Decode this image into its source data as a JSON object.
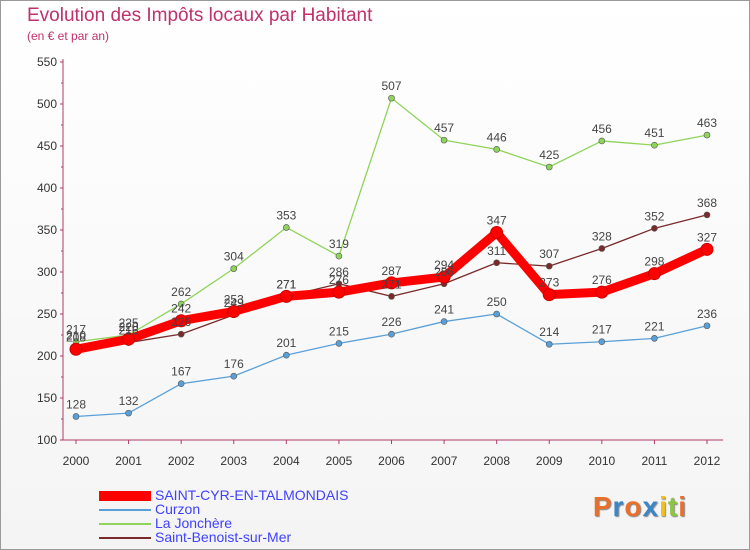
{
  "chart_data": {
    "type": "line",
    "title": "Evolution des Impôts locaux par Habitant",
    "subtitle": "(en € et par an)",
    "x": [
      "2000",
      "2001",
      "2002",
      "2003",
      "2004",
      "2005",
      "2006",
      "2007",
      "2008",
      "2009",
      "2010",
      "2011",
      "2012"
    ],
    "ylim": [
      100,
      550
    ],
    "yticks": [
      "100",
      "150",
      "200",
      "250",
      "300",
      "350",
      "400",
      "450",
      "500",
      "550"
    ],
    "grid": false,
    "legend_position": "bottom-left",
    "series": [
      {
        "name": "SAINT-CYR-EN-TALMONDAIS",
        "color": "#ff0000",
        "values": [
          208,
          220,
          242,
          253,
          271,
          276,
          287,
          294,
          347,
          273,
          276,
          298,
          327
        ],
        "labels": [
          "208",
          "220",
          "242",
          "253",
          "271",
          "276",
          "287",
          "294",
          "347",
          "273",
          "276",
          "298",
          "327"
        ]
      },
      {
        "name": "Curzon",
        "color": "#5aa0d8",
        "values": [
          128,
          132,
          167,
          176,
          201,
          215,
          226,
          241,
          250,
          214,
          217,
          221,
          236
        ],
        "labels": [
          "128",
          "132",
          "167",
          "176",
          "201",
          "215",
          "226",
          "241",
          "250",
          "214",
          "217",
          "221",
          "236"
        ]
      },
      {
        "name": "La Jonchère",
        "color": "#8fd45a",
        "values": [
          217,
          225,
          262,
          304,
          353,
          319,
          507,
          457,
          446,
          425,
          456,
          451,
          463
        ],
        "labels": [
          "217",
          "225",
          "262",
          "304",
          "353",
          "319",
          "507",
          "457",
          "446",
          "425",
          "456",
          "451",
          "463"
        ]
      },
      {
        "name": "Saint-Benoist-sur-Mer",
        "color": "#7a2a2a",
        "values": [
          210,
          216,
          226,
          249,
          271,
          286,
          271,
          286,
          311,
          307,
          328,
          352,
          368
        ],
        "labels": [
          "210",
          "216",
          "226",
          "249",
          "271",
          "286",
          "271",
          "286",
          "311",
          "307",
          "328",
          "352",
          "368"
        ]
      }
    ]
  },
  "legend": {
    "label_color": "#4040ff"
  },
  "logo": {
    "letters": [
      "P",
      "r",
      "o",
      "x",
      "i",
      "t",
      "i"
    ],
    "colors": [
      "#e8702a",
      "#3a86c8",
      "#e8702a",
      "#3a86c8",
      "#f0c020",
      "#8cc63f",
      "#e8702a"
    ]
  }
}
